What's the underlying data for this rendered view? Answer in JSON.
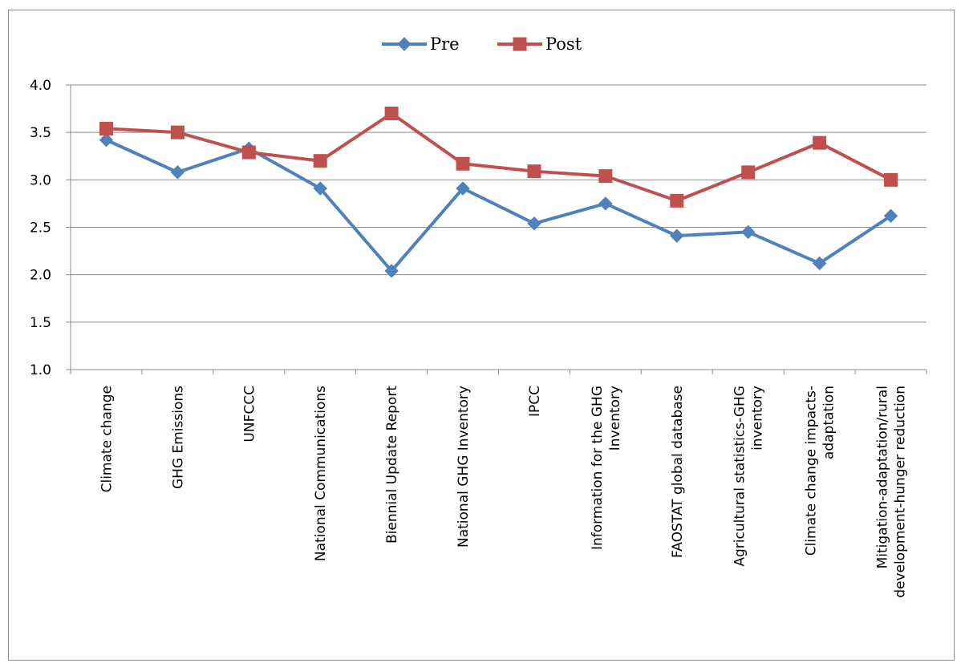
{
  "chart_data": {
    "type": "line",
    "categories": [
      [
        "Climate change"
      ],
      [
        "GHG Emissions"
      ],
      [
        "UNFCCC"
      ],
      [
        "National Communications"
      ],
      [
        "Biennial Update Report"
      ],
      [
        "National GHG Inventory"
      ],
      [
        "IPCC"
      ],
      [
        "Information for the GHG",
        "Inventory"
      ],
      [
        "FAOSTAT global database"
      ],
      [
        "Agricultural statistics-GHG",
        "inventory"
      ],
      [
        "Climate change impacts-",
        "adaptation"
      ],
      [
        "Mitigation-adaptation/rural",
        "development-hunger reduction"
      ]
    ],
    "series": [
      {
        "name": "Pre",
        "color": "#4f81bd",
        "marker": "diamond",
        "values": [
          3.42,
          3.08,
          3.33,
          2.91,
          2.04,
          2.91,
          2.54,
          2.75,
          2.41,
          2.45,
          2.12,
          2.62
        ]
      },
      {
        "name": "Post",
        "color": "#c0504d",
        "marker": "square",
        "values": [
          3.54,
          3.5,
          3.29,
          3.2,
          3.7,
          3.17,
          3.09,
          3.04,
          2.78,
          3.08,
          3.39,
          3.0
        ]
      }
    ],
    "ylim": [
      1.0,
      4.0
    ],
    "yticks": [
      "1.0",
      "1.5",
      "2.0",
      "2.5",
      "3.0",
      "3.5",
      "4.0"
    ],
    "title": "",
    "xlabel": "",
    "ylabel": "",
    "grid": true,
    "legend": "top-center"
  }
}
